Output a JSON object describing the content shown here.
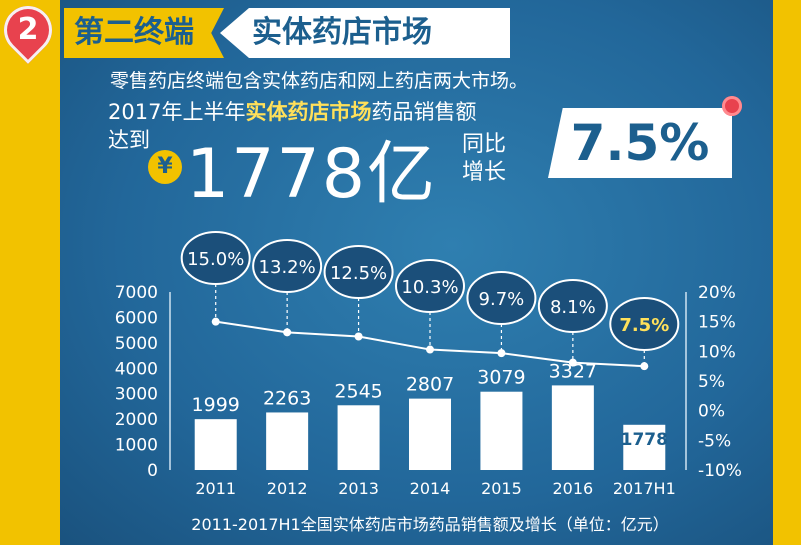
{
  "header": {
    "step_number": "2",
    "title": "第二终端",
    "subtitle": "实体药店市场"
  },
  "summary": {
    "intro": "零售药店终端包含实体药店和网上药店两大市场。",
    "sales_prefix": "2017年上半年",
    "sales_highlight": "实体药店市场",
    "sales_suffix": "药品销售额",
    "reach_label": "达到",
    "currency_symbol": "¥",
    "amount": "1778亿",
    "yoy_line1": "同比",
    "yoy_line2": "增长",
    "growth_value": "7.5%"
  },
  "chart_data": {
    "type": "bar",
    "title": "2011-2017H1全国实体药店市场药品销售额及增长（单位：亿元）",
    "categories": [
      "2011",
      "2012",
      "2013",
      "2014",
      "2015",
      "2016",
      "2017H1"
    ],
    "series": [
      {
        "type": "bar",
        "axis": "left",
        "values": [
          1999,
          2263,
          2545,
          2807,
          3079,
          3327,
          1778
        ],
        "labels": [
          "1999",
          "2263",
          "2545",
          "2807",
          "3079",
          "3327",
          "1778"
        ]
      },
      {
        "type": "line",
        "axis": "right",
        "values": [
          15.0,
          13.2,
          12.5,
          10.3,
          9.7,
          8.1,
          7.5
        ],
        "labels": [
          "15.0%",
          "13.2%",
          "12.5%",
          "10.3%",
          "9.7%",
          "8.1%",
          "7.5%"
        ]
      }
    ],
    "ylim_left": [
      0,
      7000
    ],
    "ylim_right": [
      -10,
      20
    ],
    "left_ticks": [
      "0",
      "1000",
      "2000",
      "3000",
      "4000",
      "5000",
      "6000",
      "7000"
    ],
    "right_ticks": [
      "-10%",
      "-5%",
      "0%",
      "5%",
      "10%",
      "15%",
      "20%"
    ],
    "grid": false,
    "colors": {
      "bar": "#ffffff",
      "last_bar_label": "#1c5f8e",
      "line": "#ffffff",
      "bubble": "#1b4f7a",
      "highlight_text": "#ffe05a"
    }
  }
}
